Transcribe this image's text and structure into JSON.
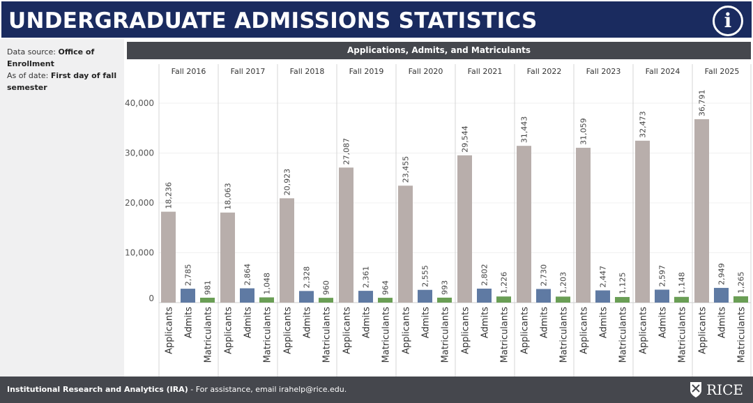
{
  "header": {
    "title": "UNDERGRADUATE ADMISSIONS STATISTICS",
    "info_icon": "info-icon"
  },
  "sidebar": {
    "source_label": "Data source: ",
    "source_value": "Office of Enrollment",
    "asof_label": "As of date: ",
    "asof_value": "First day of fall semester"
  },
  "footer": {
    "org": "Institutional Research and Analytics (IRA)",
    "assist": " - For assistance, email irahelp@rice.edu.",
    "logo_text": "RICE"
  },
  "chart_data": {
    "type": "bar",
    "title": "Applications, Admits, and Matriculants",
    "panels": [
      "Fall 2016",
      "Fall 2017",
      "Fall 2018",
      "Fall 2019",
      "Fall 2020",
      "Fall 2021",
      "Fall 2022",
      "Fall 2023",
      "Fall 2024",
      "Fall 2025"
    ],
    "categories": [
      "Applicants",
      "Admits",
      "Matriculants"
    ],
    "colors": {
      "Applicants": "#b8aeab",
      "Admits": "#5f7aa3",
      "Matriculants": "#6a9e55"
    },
    "values": [
      [
        18236,
        2785,
        981
      ],
      [
        18063,
        2864,
        1048
      ],
      [
        20923,
        2328,
        960
      ],
      [
        27087,
        2361,
        964
      ],
      [
        23455,
        2555,
        993
      ],
      [
        29544,
        2802,
        1226
      ],
      [
        31443,
        2730,
        1203
      ],
      [
        31059,
        2447,
        1125
      ],
      [
        32473,
        2597,
        1148
      ],
      [
        36791,
        2949,
        1265
      ]
    ],
    "yticks": [
      0,
      10000,
      20000,
      30000,
      40000
    ],
    "ylim": [
      0,
      40000
    ],
    "grid": true
  }
}
